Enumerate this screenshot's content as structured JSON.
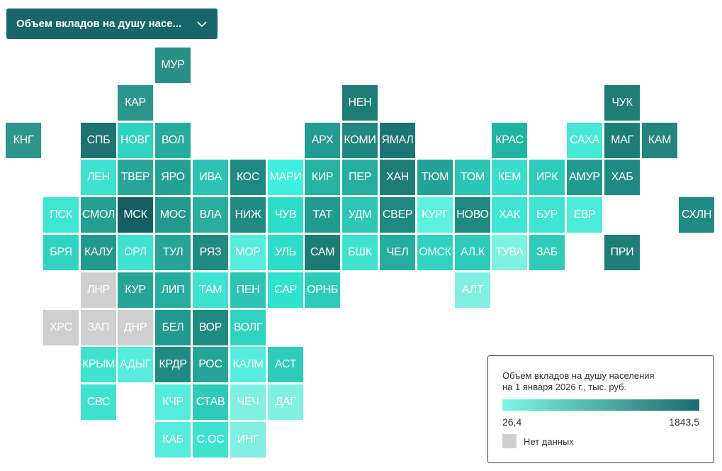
{
  "dropdown": {
    "selected": "Объем вкладов на душу насе...",
    "icon": "chevron-down-icon"
  },
  "legend": {
    "title_line1": "Объем вкладов на душу населения",
    "title_line2": "на 1 января 2026 г., тыс. руб.",
    "min_label": "26,4",
    "max_label": "1843,5",
    "nodata_label": "Нет данных",
    "gradient_start": "#7ff5e5",
    "gradient_end": "#1d6b6c",
    "nodata_color": "#cfcfcf"
  },
  "regions": [
    {
      "label": "МУР",
      "col": 4,
      "row": 0,
      "color": "#2a8f87"
    },
    {
      "label": "КАР",
      "col": 3,
      "row": 1,
      "color": "#2c958c"
    },
    {
      "label": "НЕН",
      "col": 9,
      "row": 1,
      "color": "#1f7d77"
    },
    {
      "label": "ЧУК",
      "col": 16,
      "row": 1,
      "color": "#1f7d77"
    },
    {
      "label": "КНГ",
      "col": 0,
      "row": 2,
      "color": "#2c958c"
    },
    {
      "label": "СПБ",
      "col": 2,
      "row": 2,
      "color": "#1e7272"
    },
    {
      "label": "НОВГ",
      "col": 3,
      "row": 2,
      "color": "#2fd3bf"
    },
    {
      "label": "ВОЛ",
      "col": 4,
      "row": 2,
      "color": "#28aa9c"
    },
    {
      "label": "АРХ",
      "col": 8,
      "row": 2,
      "color": "#249b90"
    },
    {
      "label": "КОМИ",
      "col": 9,
      "row": 2,
      "color": "#1f8880"
    },
    {
      "label": "ЯМАЛ",
      "col": 10,
      "row": 2,
      "color": "#1d7474"
    },
    {
      "label": "КРАС",
      "col": 13,
      "row": 2,
      "color": "#22b4a3"
    },
    {
      "label": "САХА",
      "col": 15,
      "row": 2,
      "color": "#47e8d5"
    },
    {
      "label": "МАГ",
      "col": 16,
      "row": 2,
      "color": "#1e7c77"
    },
    {
      "label": "КАМ",
      "col": 17,
      "row": 2,
      "color": "#23857e"
    },
    {
      "label": "ЛЕН",
      "col": 2,
      "row": 3,
      "color": "#3fe2cf"
    },
    {
      "label": "ТВЕР",
      "col": 3,
      "row": 3,
      "color": "#29a699"
    },
    {
      "label": "ЯРО",
      "col": 4,
      "row": 3,
      "color": "#25a194"
    },
    {
      "label": "ИВА",
      "col": 5,
      "row": 3,
      "color": "#2dc3b2"
    },
    {
      "label": "КОС",
      "col": 6,
      "row": 3,
      "color": "#1f8a82"
    },
    {
      "label": "МАРИ",
      "col": 7,
      "row": 3,
      "color": "#3ff0de"
    },
    {
      "label": "КИР",
      "col": 8,
      "row": 3,
      "color": "#27b2a3"
    },
    {
      "label": "ПЕР",
      "col": 9,
      "row": 3,
      "color": "#27ad9f"
    },
    {
      "label": "ХАН",
      "col": 10,
      "row": 3,
      "color": "#1f7d77"
    },
    {
      "label": "ТЮМ",
      "col": 11,
      "row": 3,
      "color": "#23a395"
    },
    {
      "label": "ТОМ",
      "col": 12,
      "row": 3,
      "color": "#2cc4b2"
    },
    {
      "label": "КЕМ",
      "col": 13,
      "row": 3,
      "color": "#38ddcb"
    },
    {
      "label": "ИРК",
      "col": 14,
      "row": 3,
      "color": "#2fcbb9"
    },
    {
      "label": "АМУР",
      "col": 15,
      "row": 3,
      "color": "#229a8f"
    },
    {
      "label": "ХАБ",
      "col": 16,
      "row": 3,
      "color": "#1f8a82"
    },
    {
      "label": "ПСК",
      "col": 1,
      "row": 4,
      "color": "#3fe6d2"
    },
    {
      "label": "СМОЛ",
      "col": 2,
      "row": 4,
      "color": "#269f93"
    },
    {
      "label": "МСК",
      "col": 3,
      "row": 4,
      "color": "#165e62"
    },
    {
      "label": "МОС",
      "col": 4,
      "row": 4,
      "color": "#24988d"
    },
    {
      "label": "ВЛА",
      "col": 5,
      "row": 4,
      "color": "#29ad9f"
    },
    {
      "label": "НИЖ",
      "col": 6,
      "row": 4,
      "color": "#1f8a82"
    },
    {
      "label": "ЧУВ",
      "col": 7,
      "row": 4,
      "color": "#2fdcc7"
    },
    {
      "label": "ТАТ",
      "col": 8,
      "row": 4,
      "color": "#229a8f"
    },
    {
      "label": "УДМ",
      "col": 9,
      "row": 4,
      "color": "#2cc6b4"
    },
    {
      "label": "СВЕР",
      "col": 10,
      "row": 4,
      "color": "#1f8a82"
    },
    {
      "label": "КУРГ",
      "col": 11,
      "row": 4,
      "color": "#5ef0df"
    },
    {
      "label": "НОВО",
      "col": 12,
      "row": 4,
      "color": "#1f8a82"
    },
    {
      "label": "ХАК",
      "col": 13,
      "row": 4,
      "color": "#3fe5d2"
    },
    {
      "label": "БУР",
      "col": 14,
      "row": 4,
      "color": "#3fe5d2"
    },
    {
      "label": "ЕВР",
      "col": 15,
      "row": 4,
      "color": "#4decdb"
    },
    {
      "label": "СХЛН",
      "col": 18,
      "row": 4,
      "color": "#1f8a82"
    },
    {
      "label": "БРЯ",
      "col": 1,
      "row": 5,
      "color": "#2fd3bf"
    },
    {
      "label": "КАЛУ",
      "col": 2,
      "row": 5,
      "color": "#23988d"
    },
    {
      "label": "ОРЛ",
      "col": 3,
      "row": 5,
      "color": "#3fe2cf"
    },
    {
      "label": "ТУЛ",
      "col": 4,
      "row": 5,
      "color": "#26a497"
    },
    {
      "label": "РЯЗ",
      "col": 5,
      "row": 5,
      "color": "#1f8a82"
    },
    {
      "label": "МОР",
      "col": 6,
      "row": 5,
      "color": "#56ecdb"
    },
    {
      "label": "УЛЬ",
      "col": 7,
      "row": 5,
      "color": "#2fdcc7"
    },
    {
      "label": "САМ",
      "col": 8,
      "row": 5,
      "color": "#1d7b76"
    },
    {
      "label": "БШК",
      "col": 9,
      "row": 5,
      "color": "#3fe2cf"
    },
    {
      "label": "ЧЕЛ",
      "col": 10,
      "row": 5,
      "color": "#27ad9f"
    },
    {
      "label": "ОМСК",
      "col": 11,
      "row": 5,
      "color": "#2fd3bf"
    },
    {
      "label": "АЛ.К",
      "col": 12,
      "row": 5,
      "color": "#2fcbb9"
    },
    {
      "label": "ТУВА",
      "col": 13,
      "row": 5,
      "color": "#7ff0e2"
    },
    {
      "label": "ЗАБ",
      "col": 14,
      "row": 5,
      "color": "#2fcbb9"
    },
    {
      "label": "ПРИ",
      "col": 16,
      "row": 5,
      "color": "#1f7d77"
    },
    {
      "label": "ЛНР",
      "col": 2,
      "row": 6,
      "color": "#cfcfcf"
    },
    {
      "label": "КУР",
      "col": 3,
      "row": 6,
      "color": "#26a497"
    },
    {
      "label": "ЛИП",
      "col": 4,
      "row": 6,
      "color": "#27ad9f"
    },
    {
      "label": "ТАМ",
      "col": 5,
      "row": 6,
      "color": "#3fe2cf"
    },
    {
      "label": "ПЕН",
      "col": 6,
      "row": 6,
      "color": "#2cc4b2"
    },
    {
      "label": "САР",
      "col": 7,
      "row": 6,
      "color": "#2fe3cd"
    },
    {
      "label": "ОРНБ",
      "col": 8,
      "row": 6,
      "color": "#2fcbb9"
    },
    {
      "label": "АЛТ",
      "col": 12,
      "row": 6,
      "color": "#7ff0e2"
    },
    {
      "label": "ХРС",
      "col": 1,
      "row": 7,
      "color": "#cfcfcf"
    },
    {
      "label": "ЗАП",
      "col": 2,
      "row": 7,
      "color": "#cfcfcf"
    },
    {
      "label": "ДНР",
      "col": 3,
      "row": 7,
      "color": "#cfcfcf"
    },
    {
      "label": "БЕЛ",
      "col": 4,
      "row": 7,
      "color": "#229a8f"
    },
    {
      "label": "ВОР",
      "col": 5,
      "row": 7,
      "color": "#1f8a82"
    },
    {
      "label": "ВОЛГ",
      "col": 6,
      "row": 7,
      "color": "#2fd3bf"
    },
    {
      "label": "КРЫМ",
      "col": 2,
      "row": 8,
      "color": "#3fe2cf"
    },
    {
      "label": "АДЫГ",
      "col": 3,
      "row": 8,
      "color": "#56ecdb"
    },
    {
      "label": "КРДР",
      "col": 4,
      "row": 8,
      "color": "#1f8a82"
    },
    {
      "label": "РОС",
      "col": 5,
      "row": 8,
      "color": "#26a497"
    },
    {
      "label": "КАЛМ",
      "col": 6,
      "row": 8,
      "color": "#56ecdb"
    },
    {
      "label": "АСТ",
      "col": 7,
      "row": 8,
      "color": "#2fcbb9"
    },
    {
      "label": "СВС",
      "col": 2,
      "row": 9,
      "color": "#3fe2cf"
    },
    {
      "label": "КЧР",
      "col": 4,
      "row": 9,
      "color": "#56ecdb"
    },
    {
      "label": "СТАВ",
      "col": 5,
      "row": 9,
      "color": "#2fcbb9"
    },
    {
      "label": "ЧЕЧ",
      "col": 6,
      "row": 9,
      "color": "#7ff0e2"
    },
    {
      "label": "ДАГ",
      "col": 7,
      "row": 9,
      "color": "#7ff0e2"
    },
    {
      "label": "КАБ",
      "col": 4,
      "row": 10,
      "color": "#56ecdb"
    },
    {
      "label": "С.ОС",
      "col": 5,
      "row": 10,
      "color": "#3fe2cf"
    },
    {
      "label": "ИНГ",
      "col": 6,
      "row": 10,
      "color": "#7ff0e2"
    }
  ]
}
